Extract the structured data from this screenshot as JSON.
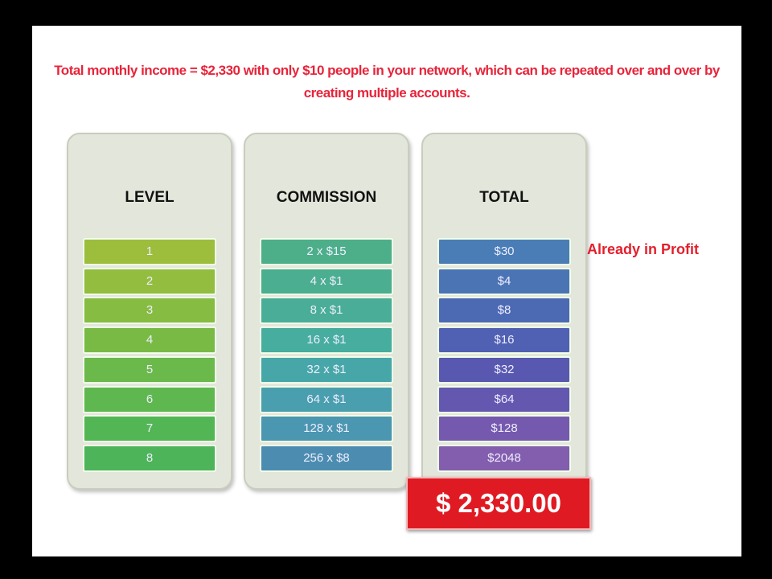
{
  "headline": "Total monthly income = $2,330  with only $10  people in your network, which can be repeated over and over by creating multiple accounts.",
  "columns": [
    {
      "header": "LEVEL",
      "cells": [
        "1",
        "2",
        "3",
        "4",
        "5",
        "6",
        "7",
        "8"
      ],
      "colors": [
        "#9dbd3d",
        "#93bd3e",
        "#86bc41",
        "#79ba45",
        "#6bb94b",
        "#5eb84f",
        "#53b655",
        "#4db45a"
      ]
    },
    {
      "header": "COMMISSION",
      "cells": [
        "2 x $15",
        "4 x $1",
        "8 x $1",
        "16 x $1",
        "32 x $1",
        "64 x $1",
        "128 x $1",
        "256 x $8"
      ],
      "colors": [
        "#4daf8a",
        "#4bae90",
        "#49ad97",
        "#47ad9f",
        "#47a7a8",
        "#499fae",
        "#4b96b0",
        "#4c8cb1"
      ]
    },
    {
      "header": "TOTAL",
      "cells": [
        "$30",
        "$4",
        "$8",
        "$16",
        "$32",
        "$64",
        "$128",
        "$2048"
      ],
      "colors": [
        "#4a7db5",
        "#4b74b5",
        "#4c69b4",
        "#5060b2",
        "#5858b0",
        "#6357b0",
        "#7459ae",
        "#835dae"
      ]
    }
  ],
  "profit_note": "Already in Profit",
  "grand_total": "$ 2,330.00"
}
